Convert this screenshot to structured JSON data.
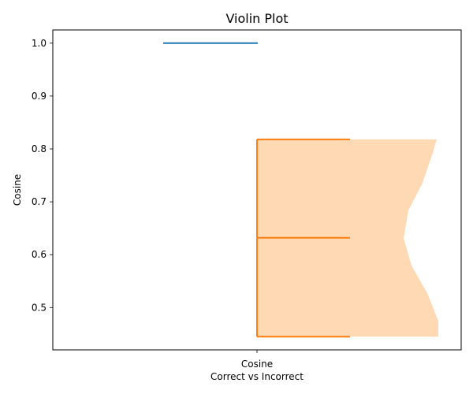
{
  "chart_data": {
    "type": "violin",
    "title": "Violin Plot",
    "xlabel": "Correct vs Incorrect",
    "ylabel": "Cosine",
    "categories": [
      "Cosine"
    ],
    "ylim": [
      0.42,
      1.025
    ],
    "yticks": [
      "0.5",
      "0.6",
      "0.7",
      "0.8",
      "0.9",
      "1.0"
    ],
    "grid": false,
    "series": [
      {
        "color": "#1f77b4",
        "min": 1.0,
        "max": 1.0,
        "median": 1.0
      },
      {
        "color": "#ff7f0e",
        "fill_color": "#ffd8b4",
        "min": 0.445,
        "max": 0.818,
        "median": 0.632
      }
    ]
  }
}
